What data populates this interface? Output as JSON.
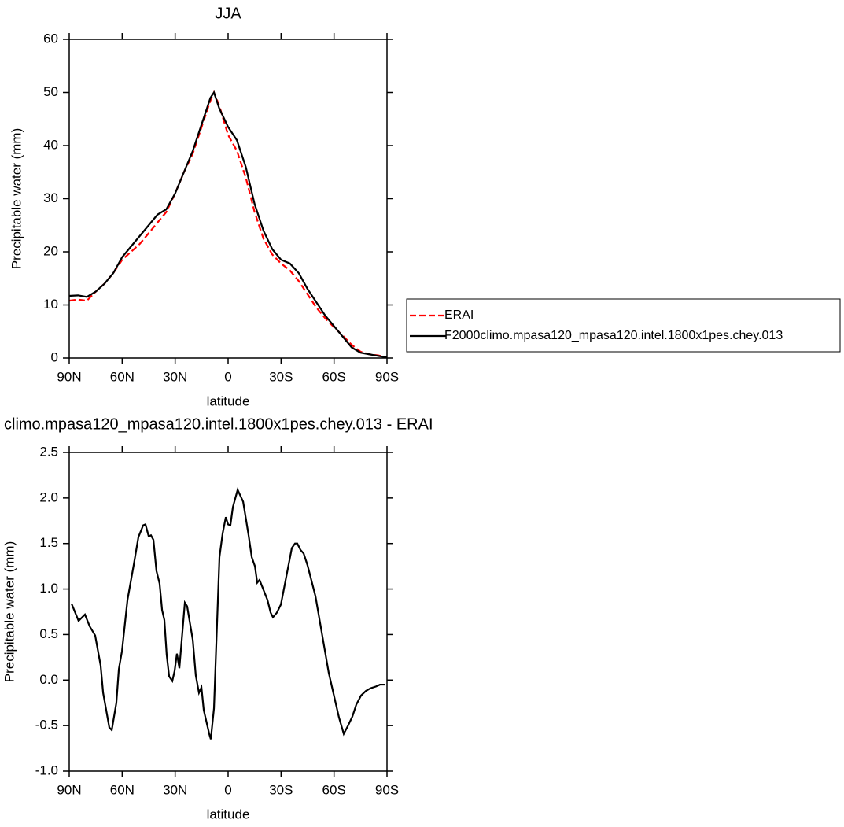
{
  "chart_data": [
    {
      "type": "line",
      "title": "JJA",
      "x_label": "latitude",
      "y_label": "Precipitable water (mm)",
      "x": [
        90,
        85,
        80,
        75,
        70,
        65,
        60,
        55,
        50,
        45,
        40,
        35,
        30,
        25,
        20,
        15,
        10,
        8,
        5,
        0,
        -5,
        -10,
        -15,
        -20,
        -25,
        -30,
        -35,
        -40,
        -45,
        -50,
        -55,
        -60,
        -65,
        -70,
        -75,
        -80,
        -85,
        -90
      ],
      "series": [
        {
          "name": "ERAI",
          "color": "#ff0000",
          "line_style": "dashed",
          "values": [
            10.8,
            11,
            10.8,
            12.5,
            14,
            16,
            18.5,
            20,
            21.5,
            23.5,
            25.5,
            27.5,
            31,
            35,
            38.5,
            43.5,
            48.5,
            50,
            47.5,
            42,
            39,
            34,
            27.5,
            22.5,
            19.5,
            17.8,
            16.5,
            14.5,
            12,
            9.5,
            7.5,
            5.8,
            4.2,
            2.5,
            1.2,
            0.7,
            0.5,
            0.1
          ]
        },
        {
          "name": "F2000climo.mpasa120_mpasa120.intel.1800x1pes.chey.013",
          "color": "#000000",
          "line_style": "solid",
          "values": [
            11.7,
            11.8,
            11.5,
            12.5,
            14,
            16,
            19,
            21,
            23,
            25,
            27,
            28,
            31,
            35,
            39,
            44,
            49,
            50,
            47,
            43.5,
            41,
            36,
            29,
            24,
            20.5,
            18.5,
            17.8,
            16,
            13,
            10.5,
            8,
            6,
            4,
            2,
            1,
            0.7,
            0.4,
            0.1
          ]
        }
      ],
      "xlim": [
        90,
        -90
      ],
      "xticks": [
        {
          "value": 90,
          "label": "90N"
        },
        {
          "value": 60,
          "label": "60N"
        },
        {
          "value": 30,
          "label": "30N"
        },
        0,
        {
          "value": -30,
          "label": "30S"
        },
        {
          "value": -60,
          "label": "60S"
        },
        {
          "value": -90,
          "label": "90S"
        }
      ],
      "ylim": [
        0,
        60
      ],
      "yticks": [
        0,
        10,
        20,
        30,
        40,
        50,
        60
      ],
      "legend": "right"
    },
    {
      "type": "line",
      "title": "climo.mpasa120_mpasa120.intel.1800x1pes.chey.013 - ERAI",
      "x_label": "latitude",
      "y_label": "Precipitable water (mm)",
      "x": [
        88.7,
        84.7,
        81.1,
        78.4,
        75.3,
        72.2,
        70.8,
        67.3,
        65.9,
        63.3,
        61.9,
        60.1,
        57.0,
        53.5,
        50.8,
        48.1,
        46.8,
        45.0,
        43.7,
        42.3,
        40.6,
        38.8,
        37.4,
        36.1,
        34.8,
        33.4,
        31.6,
        30.3,
        29.0,
        27.6,
        24.5,
        23.2,
        20.0,
        18.3,
        16.5,
        15.1,
        13.8,
        10.7,
        9.8,
        8.0,
        4.9,
        3.1,
        1.3,
        0.0,
        -1.3,
        -2.7,
        -5.4,
        -8.5,
        -11.6,
        -13.4,
        -15.2,
        -16.5,
        -17.8,
        -22.3,
        -24.1,
        -25.4,
        -27.6,
        -29.9,
        -32.1,
        -33.9,
        -36.1,
        -37.9,
        -39.2,
        -41.0,
        -42.8,
        -45.0,
        -49.5,
        -57.0,
        -62.8,
        -65.5,
        -67.7,
        -70.4,
        -72.6,
        -75.3,
        -78.0,
        -80.6,
        -83.8,
        -86.0,
        -88.7
      ],
      "values": [
        0.84,
        0.65,
        0.72,
        0.59,
        0.49,
        0.16,
        -0.14,
        -0.52,
        -0.55,
        -0.25,
        0.12,
        0.32,
        0.88,
        1.26,
        1.57,
        1.7,
        1.71,
        1.58,
        1.59,
        1.54,
        1.2,
        1.06,
        0.77,
        0.66,
        0.28,
        0.04,
        -0.01,
        0.1,
        0.29,
        0.13,
        0.85,
        0.81,
        0.44,
        0.05,
        -0.14,
        -0.08,
        -0.33,
        -0.59,
        -0.65,
        -0.31,
        1.35,
        1.61,
        1.79,
        1.71,
        1.7,
        1.9,
        2.09,
        1.96,
        1.59,
        1.35,
        1.25,
        1.07,
        1.1,
        0.88,
        0.74,
        0.69,
        0.74,
        0.83,
        1.05,
        1.23,
        1.45,
        1.5,
        1.5,
        1.43,
        1.39,
        1.26,
        0.92,
        0.08,
        -0.41,
        -0.59,
        -0.51,
        -0.4,
        -0.27,
        -0.17,
        -0.12,
        -0.09,
        -0.07,
        -0.05,
        -0.05
      ],
      "color": "#000000",
      "xlim": [
        90,
        -90
      ],
      "xticks": [
        {
          "value": 90,
          "label": "90N"
        },
        {
          "value": 60,
          "label": "60N"
        },
        {
          "value": 30,
          "label": "30N"
        },
        0,
        {
          "value": -30,
          "label": "30S"
        },
        {
          "value": -60,
          "label": "60S"
        },
        {
          "value": -90,
          "label": "90S"
        }
      ],
      "ylim": [
        -1,
        2.5
      ],
      "yticks": [
        {
          "value": -1,
          "label": "-1.0"
        },
        -0.5,
        {
          "value": 0,
          "label": "0.0"
        },
        0.5,
        {
          "value": 1,
          "label": "1.0"
        },
        1.5,
        {
          "value": 2,
          "label": "2.0"
        },
        2.5
      ]
    }
  ]
}
